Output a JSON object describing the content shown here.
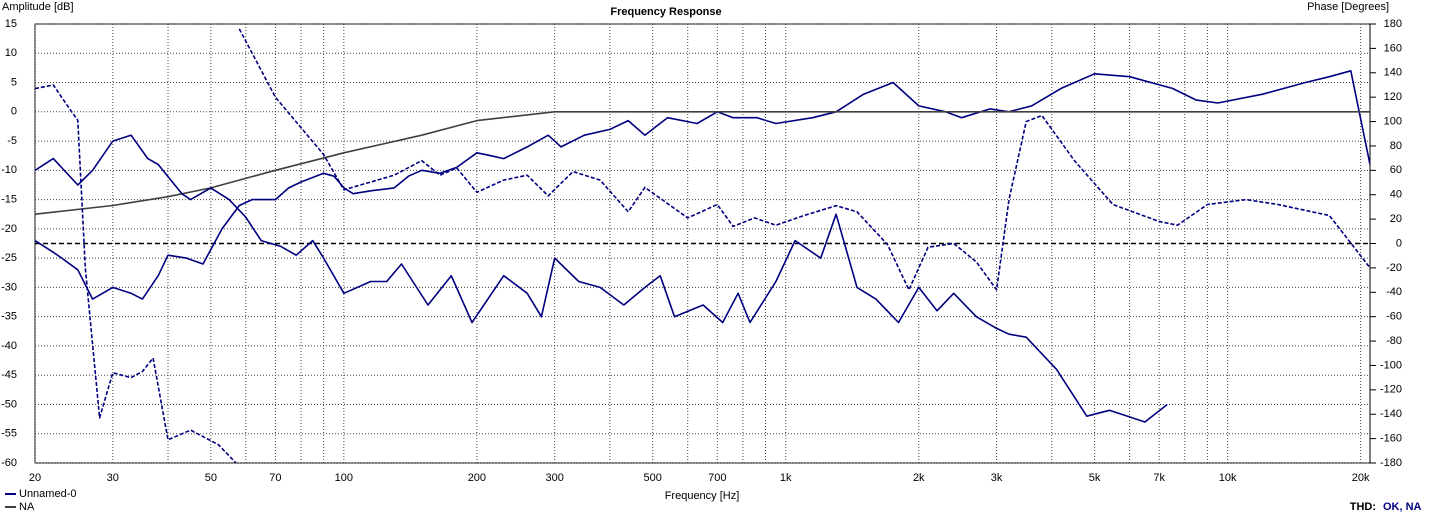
{
  "chart_data": {
    "type": "line",
    "title": "Frequency Response",
    "y_label": "Amplitude [dB]",
    "y2_label": "Phase [Degrees]",
    "x_label": "Frequency [Hz]",
    "thd_label": "THD:",
    "thd_status": "OK, NA",
    "log_x": true,
    "grid": true,
    "legend": "bottom-left",
    "xlim": [
      20,
      21000
    ],
    "xticks": [
      20,
      30,
      50,
      70,
      100,
      200,
      300,
      500,
      700,
      {
        "value": 1000,
        "label": "1k"
      },
      {
        "value": 2000,
        "label": "2k"
      },
      {
        "value": 3000,
        "label": "3k"
      },
      {
        "value": 5000,
        "label": "5k"
      },
      {
        "value": 7000,
        "label": "7k"
      },
      {
        "value": 10000,
        "label": "10k"
      },
      {
        "value": 20000,
        "label": "20k"
      }
    ],
    "xgrid_minor": [
      40,
      60,
      80,
      90,
      400,
      600,
      800,
      900,
      4000,
      6000,
      8000,
      9000
    ],
    "ylim": [
      -60,
      15
    ],
    "yticks": [
      15,
      10,
      5,
      0,
      -5,
      -10,
      -15,
      -20,
      -25,
      -30,
      -35,
      -40,
      -45,
      -50,
      -55,
      -60
    ],
    "y2lim": [
      -180,
      180
    ],
    "y2ticks": [
      180,
      160,
      140,
      120,
      100,
      80,
      60,
      40,
      20,
      0,
      -20,
      -40,
      -60,
      -80,
      -100,
      -120,
      -140,
      -160,
      -180
    ],
    "series": [
      {
        "name": "Unnamed-0",
        "color": "#000080",
        "x": [
          20,
          22,
          23,
          25,
          27,
          30,
          33,
          35,
          38,
          40,
          44,
          48,
          53,
          58,
          62,
          70,
          75,
          80,
          90,
          95,
          100,
          105,
          115,
          130,
          140,
          150,
          165,
          180,
          200,
          215,
          230,
          260,
          290,
          310,
          350,
          400,
          440,
          480,
          540,
          630,
          700,
          760,
          860,
          950,
          1150,
          1300,
          1500,
          1750,
          2000,
          2300,
          2500,
          2900,
          3200,
          3600,
          4200,
          5000,
          6000,
          7500,
          8500,
          9500,
          12000,
          15000,
          17000,
          19000,
          21000
        ],
        "values": [
          -22,
          -24,
          -25,
          -27,
          -32,
          -30,
          -31,
          -32,
          -28,
          -24.5,
          -25,
          -26,
          -20,
          -16,
          -15,
          -15,
          -13,
          -12,
          -10.5,
          -11,
          -13,
          -14,
          -13.5,
          -13,
          -11,
          -10,
          -10.5,
          -9.5,
          -7,
          -7.5,
          -8,
          -6,
          -4,
          -6,
          -4,
          -3,
          -1.5,
          -4,
          -1,
          -2,
          0,
          -1,
          -1,
          -2,
          -1,
          0,
          3,
          5,
          1,
          0,
          -1,
          0.5,
          0,
          1,
          4,
          6.5,
          6,
          4,
          2,
          1.5,
          3,
          5,
          6,
          7,
          -9
        ]
      },
      {
        "name": "NA",
        "color": "#404040",
        "x": [
          20,
          30,
          40,
          50,
          70,
          100,
          150,
          200,
          300,
          1000,
          21000
        ],
        "values": [
          -17.5,
          -16,
          -14.5,
          -13,
          -10,
          -7,
          -4,
          -1.5,
          0,
          0,
          0
        ]
      },
      {
        "color": "#000080",
        "axis": "y2",
        "dashed": true,
        "x": [
          20,
          22,
          24,
          25,
          26,
          28,
          30,
          33,
          35,
          37,
          40,
          45,
          52,
          57,
          57.5,
          58,
          70,
          90,
          100,
          130,
          150,
          165,
          180,
          200,
          230,
          260,
          290,
          330,
          380,
          440,
          480,
          600,
          700,
          760,
          850,
          950,
          1100,
          1300,
          1450,
          1700,
          1900,
          2100,
          2400,
          2700,
          3000,
          3200,
          3500,
          3800,
          4500,
          5500,
          7000,
          7700,
          9000,
          11000,
          13000,
          17000,
          20000,
          21000
        ],
        "values": [
          127,
          130,
          110,
          101,
          -20,
          -143,
          -106,
          -110,
          -105,
          -94,
          -161,
          -153,
          -165,
          -180,
          null,
          176,
          120,
          73,
          44,
          56,
          68,
          56,
          62,
          42,
          52,
          56,
          39,
          59,
          52,
          26,
          46,
          21,
          32,
          14,
          21,
          15,
          23,
          31,
          26,
          -1,
          -38,
          -3,
          0,
          -15,
          -38,
          36,
          100,
          105,
          68,
          32,
          18,
          15,
          32,
          36,
          32,
          23,
          -10,
          -20
        ]
      },
      {
        "color": "#000080",
        "x": [
          20,
          22,
          25,
          27,
          30,
          33,
          36,
          38,
          43,
          45,
          50,
          55,
          60,
          65,
          72,
          78,
          85,
          90,
          100,
          115,
          125,
          135,
          155,
          175,
          195,
          230,
          260,
          280,
          300,
          340,
          380,
          430,
          480,
          520,
          560,
          650,
          720,
          780,
          830,
          950,
          1050,
          1200,
          1300,
          1450,
          1600,
          1800,
          2000,
          2200,
          2400,
          2700,
          3000,
          3200,
          3500,
          4100,
          4800,
          5400,
          6500,
          7300
        ],
        "values": [
          -10,
          -8,
          -12.5,
          -10,
          -5,
          -4,
          -8,
          -9,
          -14,
          -15,
          -13,
          -15,
          -18,
          -22,
          -23,
          -24.5,
          -22,
          -25,
          -31,
          -29,
          -29,
          -26,
          -33,
          -28,
          -36,
          -28,
          -31,
          -35,
          -25,
          -29,
          -30,
          -33,
          -30,
          -28,
          -35,
          -33,
          -36,
          -31,
          -36,
          -29,
          -22,
          -25,
          -17.5,
          -30,
          -32,
          -36,
          -30,
          -34,
          -31,
          -35,
          -37,
          -38,
          -38.5,
          -44,
          -52,
          -51,
          -53,
          -50
        ]
      }
    ]
  }
}
